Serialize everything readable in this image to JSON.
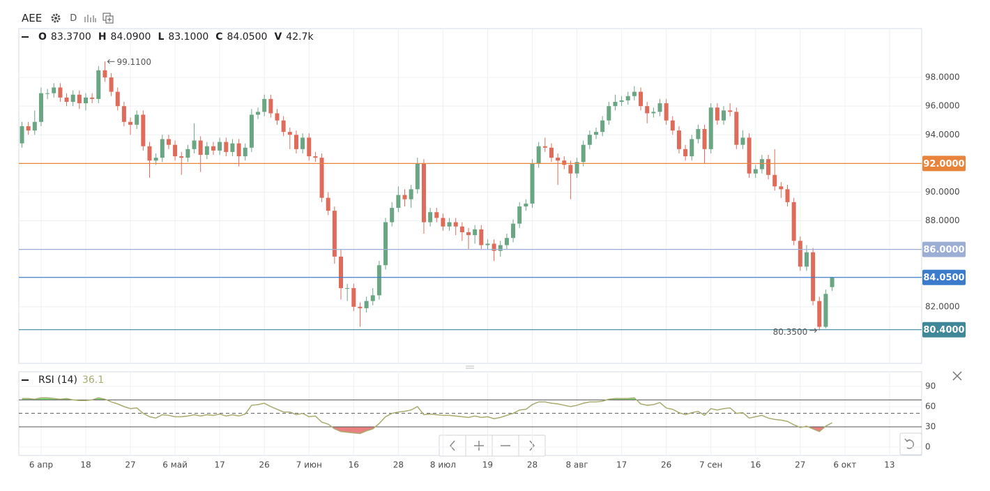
{
  "chart_data": {
    "type": "candlestick",
    "symbol": "AEE",
    "interval": "D",
    "legend": {
      "fields": [
        {
          "name": "O",
          "text": "83.3700"
        },
        {
          "name": "H",
          "text": "84.0900"
        },
        {
          "name": "L",
          "text": "83.1000"
        },
        {
          "name": "C",
          "text": "84.0500"
        },
        {
          "name": "V",
          "text": "42.7k"
        }
      ]
    },
    "up_color": "#6aa584",
    "down_color": "#df6b5a",
    "ylim": [
      78.05,
      101.41
    ],
    "yticks": [
      {
        "value": 82,
        "label": "82.0000"
      },
      {
        "value": 84,
        "label": "84.0000"
      },
      {
        "value": 86,
        "label": "86.0000"
      },
      {
        "value": 88,
        "label": "88.0000"
      },
      {
        "value": 90,
        "label": "90.0000"
      },
      {
        "value": 92,
        "label": "92.0000"
      },
      {
        "value": 94,
        "label": "94.0000"
      },
      {
        "value": 96,
        "label": "96.0000"
      },
      {
        "value": 98,
        "label": "98.0000"
      }
    ],
    "grid": true,
    "price_lines": [
      {
        "value": 92,
        "label": "92.0000",
        "color": "#e8843c"
      },
      {
        "value": 86,
        "label": "86.0000",
        "color": "#9caed3"
      },
      {
        "value": 84.05,
        "label": "84.0500",
        "color": "#3b7bcc"
      },
      {
        "value": 80.4,
        "label": "80.4000",
        "color": "#3f8799"
      }
    ],
    "annotations": {
      "max_label": "99.1100",
      "min_label": "80.3500"
    },
    "categories": [
      null,
      null,
      null,
      "6 апр",
      null,
      null,
      null,
      null,
      null,
      null,
      "18",
      null,
      null,
      null,
      null,
      null,
      null,
      "27",
      null,
      null,
      null,
      null,
      null,
      null,
      "6 май",
      null,
      null,
      null,
      null,
      null,
      null,
      "17",
      null,
      null,
      null,
      null,
      null,
      null,
      "26",
      null,
      null,
      null,
      null,
      null,
      null,
      "7 июн",
      null,
      null,
      null,
      null,
      null,
      null,
      "16",
      null,
      null,
      null,
      null,
      null,
      null,
      "28",
      null,
      null,
      null,
      null,
      null,
      null,
      "8 июл",
      null,
      null,
      null,
      null,
      null,
      null,
      "19",
      null,
      null,
      null,
      null,
      null,
      null,
      "28",
      null,
      null,
      null,
      null,
      null,
      null,
      "8 авг",
      null,
      null,
      null,
      null,
      null,
      null,
      "17",
      null,
      null,
      null,
      null,
      null,
      null,
      "26",
      null,
      null,
      null,
      null,
      null,
      null,
      "7 сен",
      null,
      null,
      null,
      null,
      null,
      null,
      "16",
      null,
      null,
      null,
      null,
      null,
      null,
      "27",
      null,
      null,
      null,
      null,
      null,
      null,
      "6 окт",
      null,
      null,
      null,
      null,
      null,
      null,
      "13"
    ],
    "open": [
      93.4,
      94.6,
      94.3,
      94.9,
      96.9,
      96.9,
      97.3,
      96.6,
      96.3,
      96.8,
      96.2,
      96.6,
      96.5,
      98.5,
      98.0,
      97.0,
      96.0,
      94.9,
      94.7,
      95.4,
      93.2,
      92.2,
      92.4,
      93.7,
      93.3,
      92.5,
      92.4,
      93.0,
      93.6,
      92.6,
      93.2,
      92.9,
      93.5,
      92.8,
      93.4,
      92.5,
      93.1,
      95.4,
      95.6,
      96.5,
      95.5,
      95.0,
      94.2,
      94.0,
      93.0,
      93.8,
      92.5,
      92.4,
      89.6,
      88.7,
      85.5,
      83.3,
      83.3,
      82.0,
      81.9,
      82.4,
      82.8,
      84.9,
      87.9,
      88.9,
      89.8,
      89.5,
      90.2,
      92.0,
      87.9,
      88.6,
      88.2,
      87.6,
      87.9,
      87.6,
      87.2,
      87.0,
      87.4,
      86.3,
      86.4,
      85.9,
      86.3,
      86.8,
      87.8,
      89.0,
      89.2,
      92.0,
      93.2,
      93.1,
      92.4,
      92.2,
      91.9,
      91.3,
      92.1,
      93.3,
      94.0,
      94.2,
      95.0,
      96.0,
      96.3,
      96.4,
      96.7,
      97.0,
      96.0,
      95.5,
      95.6,
      96.2,
      95.0,
      94.3,
      93.0,
      92.5,
      93.7,
      94.4,
      93.0,
      95.9,
      95.0,
      95.7,
      95.6,
      93.3,
      93.8,
      91.3,
      91.6,
      92.3,
      91.2,
      90.4,
      90.2,
      89.3,
      86.6,
      84.8,
      85.8,
      82.4,
      80.6,
      83.37,
      null,
      null,
      null,
      null,
      null,
      null,
      null,
      null,
      null
    ],
    "high": [
      94.9,
      94.9,
      95.7,
      97.3,
      97.2,
      97.6,
      97.6,
      96.9,
      97.1,
      97.1,
      96.9,
      96.9,
      98.8,
      99.11,
      98.3,
      97.3,
      96.3,
      95.2,
      95.7,
      95.7,
      93.5,
      92.7,
      94.0,
      94.0,
      93.6,
      92.8,
      93.3,
      94.8,
      93.9,
      93.5,
      93.5,
      93.8,
      93.8,
      93.7,
      93.7,
      93.4,
      95.8,
      95.9,
      96.8,
      96.8,
      95.8,
      95.3,
      94.5,
      94.3,
      94.1,
      94.1,
      92.8,
      92.7,
      90.0,
      89.0,
      86.0,
      83.6,
      83.6,
      82.3,
      82.7,
      83.3,
      85.2,
      88.2,
      89.3,
      90.4,
      90.2,
      90.5,
      92.4,
      92.3,
      88.9,
      88.9,
      88.5,
      88.2,
      88.2,
      87.9,
      87.5,
      87.7,
      87.7,
      86.7,
      86.7,
      86.6,
      87.1,
      88.1,
      89.3,
      89.5,
      92.3,
      93.5,
      93.8,
      93.4,
      92.7,
      92.5,
      92.2,
      92.4,
      93.6,
      94.3,
      94.5,
      95.3,
      96.3,
      96.8,
      96.7,
      97.0,
      97.4,
      97.3,
      96.3,
      95.9,
      96.5,
      96.5,
      95.3,
      94.6,
      93.3,
      94.0,
      94.7,
      94.7,
      96.2,
      96.2,
      96.0,
      96.2,
      95.9,
      94.3,
      94.1,
      91.9,
      92.6,
      92.6,
      93.0,
      90.7,
      90.5,
      89.6,
      86.9,
      86.3,
      86.1,
      82.7,
      83.2,
      84.09,
      null,
      null,
      null,
      null,
      null,
      null,
      null,
      null,
      null
    ],
    "low": [
      93.1,
      94.0,
      94.0,
      94.6,
      96.5,
      96.6,
      96.3,
      96.0,
      96.0,
      95.8,
      95.7,
      96.2,
      96.2,
      97.7,
      96.7,
      95.7,
      94.6,
      94.0,
      94.4,
      92.9,
      91.0,
      91.9,
      92.1,
      93.0,
      92.2,
      91.2,
      92.1,
      92.7,
      91.4,
      92.3,
      92.6,
      92.6,
      92.5,
      92.5,
      91.8,
      92.2,
      92.8,
      95.1,
      95.3,
      95.2,
      94.7,
      93.9,
      93.0,
      92.7,
      92.7,
      92.2,
      92.1,
      89.3,
      88.4,
      85.0,
      82.5,
      82.4,
      81.7,
      80.6,
      81.6,
      82.1,
      82.5,
      84.6,
      87.6,
      88.6,
      89.0,
      88.9,
      89.9,
      87.1,
      87.6,
      87.9,
      87.3,
      87.3,
      87.0,
      86.6,
      86.0,
      86.4,
      86.0,
      86.0,
      85.2,
      85.5,
      86.0,
      86.5,
      87.5,
      88.7,
      88.9,
      91.7,
      92.8,
      92.1,
      90.5,
      91.6,
      89.5,
      91.0,
      91.8,
      93.0,
      93.7,
      93.9,
      94.7,
      95.7,
      96.0,
      96.1,
      96.4,
      95.7,
      94.8,
      95.2,
      95.3,
      94.7,
      94.0,
      92.7,
      92.2,
      92.2,
      93.4,
      92.0,
      92.7,
      94.7,
      94.7,
      95.3,
      93.0,
      93.0,
      91.0,
      91.0,
      91.3,
      90.9,
      90.1,
      89.6,
      89.0,
      86.3,
      84.5,
      84.5,
      82.1,
      80.35,
      80.5,
      83.1,
      null,
      null,
      null,
      null,
      null,
      null,
      null,
      null,
      null
    ],
    "close": [
      94.6,
      94.3,
      94.9,
      96.9,
      96.9,
      97.3,
      96.6,
      96.3,
      96.8,
      96.2,
      96.6,
      96.5,
      98.5,
      98.0,
      97.0,
      96.0,
      94.9,
      94.7,
      95.4,
      93.2,
      92.2,
      92.4,
      93.7,
      93.3,
      92.5,
      92.4,
      93.0,
      93.6,
      92.6,
      93.2,
      92.9,
      93.5,
      92.8,
      93.4,
      92.5,
      93.1,
      95.4,
      95.6,
      96.5,
      95.5,
      95.0,
      94.2,
      94.0,
      93.0,
      93.8,
      92.5,
      92.4,
      89.6,
      88.7,
      85.5,
      83.3,
      83.3,
      82.0,
      81.9,
      82.4,
      82.8,
      84.9,
      87.9,
      88.9,
      89.8,
      89.5,
      90.2,
      92.0,
      87.9,
      88.6,
      88.2,
      87.6,
      87.9,
      87.6,
      87.2,
      87.0,
      87.4,
      86.3,
      86.4,
      85.9,
      86.3,
      86.8,
      87.8,
      89.0,
      89.2,
      92.0,
      93.2,
      93.1,
      92.4,
      92.2,
      91.9,
      91.3,
      92.1,
      93.3,
      94.0,
      94.2,
      95.0,
      96.0,
      96.3,
      96.4,
      96.7,
      97.0,
      96.0,
      95.5,
      95.6,
      96.2,
      95.0,
      94.3,
      93.0,
      92.5,
      93.7,
      94.4,
      93.0,
      95.9,
      95.0,
      95.7,
      95.6,
      93.3,
      93.8,
      91.3,
      91.6,
      92.3,
      91.2,
      90.4,
      90.2,
      89.3,
      86.6,
      84.8,
      85.8,
      82.4,
      80.6,
      82.9,
      84.05,
      null,
      null,
      null,
      null,
      null,
      null,
      null,
      null,
      null
    ],
    "rsi": {
      "title": "RSI (14)",
      "last": "36.1",
      "color": "#a9ab6f",
      "upper_fill": "#7ee07e",
      "lower_fill": "#e88080",
      "ylim": [
        -12.4,
        111.7
      ],
      "yticks": [
        0,
        30,
        60,
        90
      ],
      "levels": [
        {
          "value": 70,
          "dashed": false
        },
        {
          "value": 50,
          "dashed": true
        },
        {
          "value": 30,
          "dashed": false
        }
      ],
      "values": [
        72,
        72,
        71,
        73,
        73,
        72,
        71,
        72,
        70,
        69,
        69,
        70,
        73,
        71,
        67,
        64,
        60,
        57,
        58,
        50,
        45,
        43,
        48,
        47,
        45,
        45,
        46,
        48,
        46,
        48,
        47,
        49,
        46,
        48,
        46,
        49,
        62,
        63,
        65,
        60,
        56,
        52,
        52,
        48,
        50,
        45,
        46,
        37,
        34,
        27,
        23,
        22,
        21,
        20,
        24,
        27,
        35,
        45,
        50,
        52,
        53,
        55,
        60,
        48,
        49,
        48,
        47,
        47,
        46,
        45,
        44,
        46,
        44,
        45,
        42,
        44,
        47,
        50,
        55,
        56,
        63,
        67,
        67,
        65,
        64,
        62,
        60,
        62,
        65,
        67,
        67,
        68,
        71,
        72,
        72,
        72,
        73,
        64,
        62,
        63,
        66,
        58,
        56,
        51,
        48,
        51,
        53,
        47,
        57,
        55,
        57,
        58,
        50,
        51,
        43,
        45,
        47,
        43,
        41,
        40,
        38,
        33,
        29,
        31,
        27,
        23,
        31,
        36.1,
        null,
        null,
        null,
        null,
        null,
        null,
        null,
        null,
        null
      ]
    }
  }
}
